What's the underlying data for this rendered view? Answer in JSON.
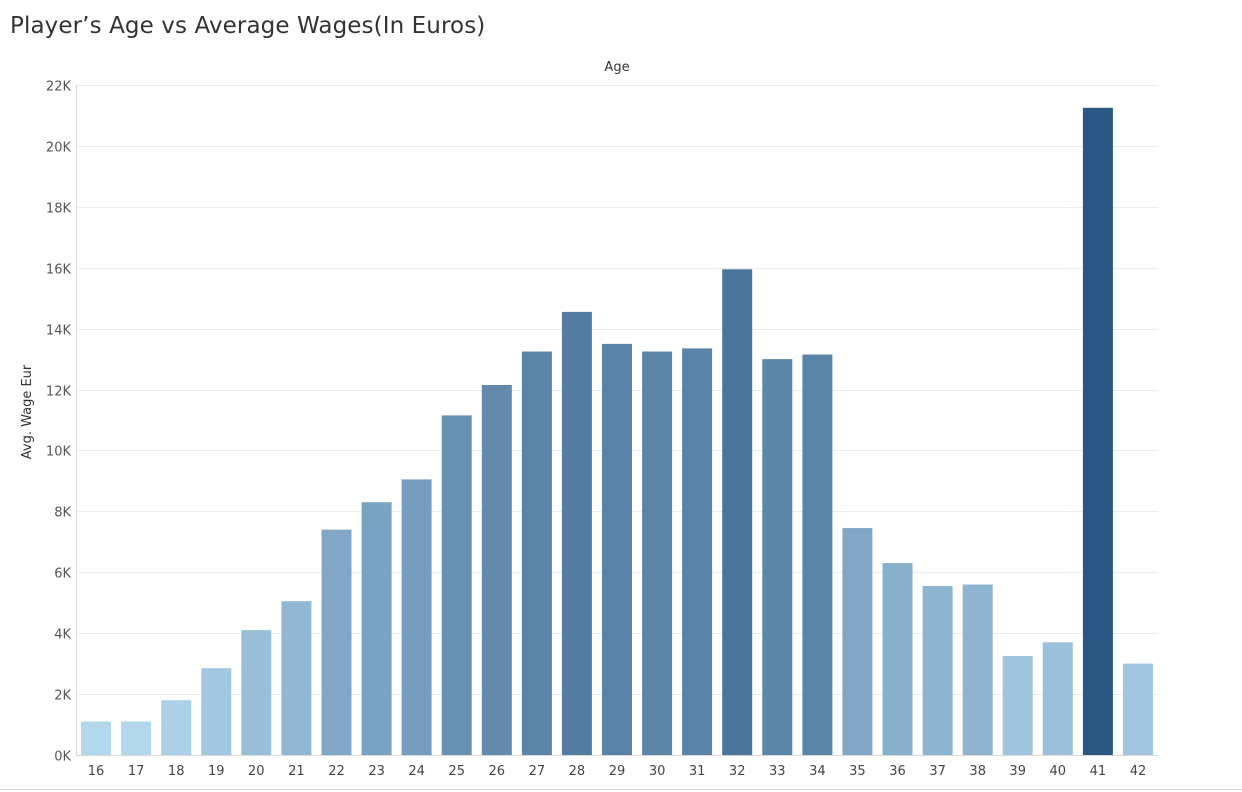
{
  "title": "Player’s Age vs Average Wages(In Euros)",
  "chart_data": {
    "type": "bar",
    "title": "Player’s Age vs Average Wages(In Euros)",
    "xlabel": "Age",
    "ylabel": "Avg. Wage Eur",
    "categories": [
      "16",
      "17",
      "18",
      "19",
      "20",
      "21",
      "22",
      "23",
      "24",
      "25",
      "26",
      "27",
      "28",
      "29",
      "30",
      "31",
      "32",
      "33",
      "34",
      "35",
      "36",
      "37",
      "38",
      "39",
      "40",
      "41",
      "42"
    ],
    "values": [
      1100,
      1100,
      1800,
      2850,
      4100,
      5050,
      7400,
      8300,
      9050,
      11150,
      12150,
      13250,
      14550,
      13500,
      13250,
      13350,
      15950,
      13000,
      13150,
      7450,
      6300,
      5550,
      5600,
      3250,
      3700,
      21250,
      3000
    ],
    "ylim": [
      0,
      22000
    ],
    "yticks": [
      0,
      2000,
      4000,
      6000,
      8000,
      10000,
      12000,
      14000,
      16000,
      18000,
      20000,
      22000
    ],
    "ytick_labels": [
      "0K",
      "2K",
      "4K",
      "6K",
      "8K",
      "10K",
      "12K",
      "14K",
      "16K",
      "18K",
      "20K",
      "22K"
    ],
    "grid": true,
    "color_range": [
      "#b3d7ed",
      "#2a5783"
    ]
  }
}
